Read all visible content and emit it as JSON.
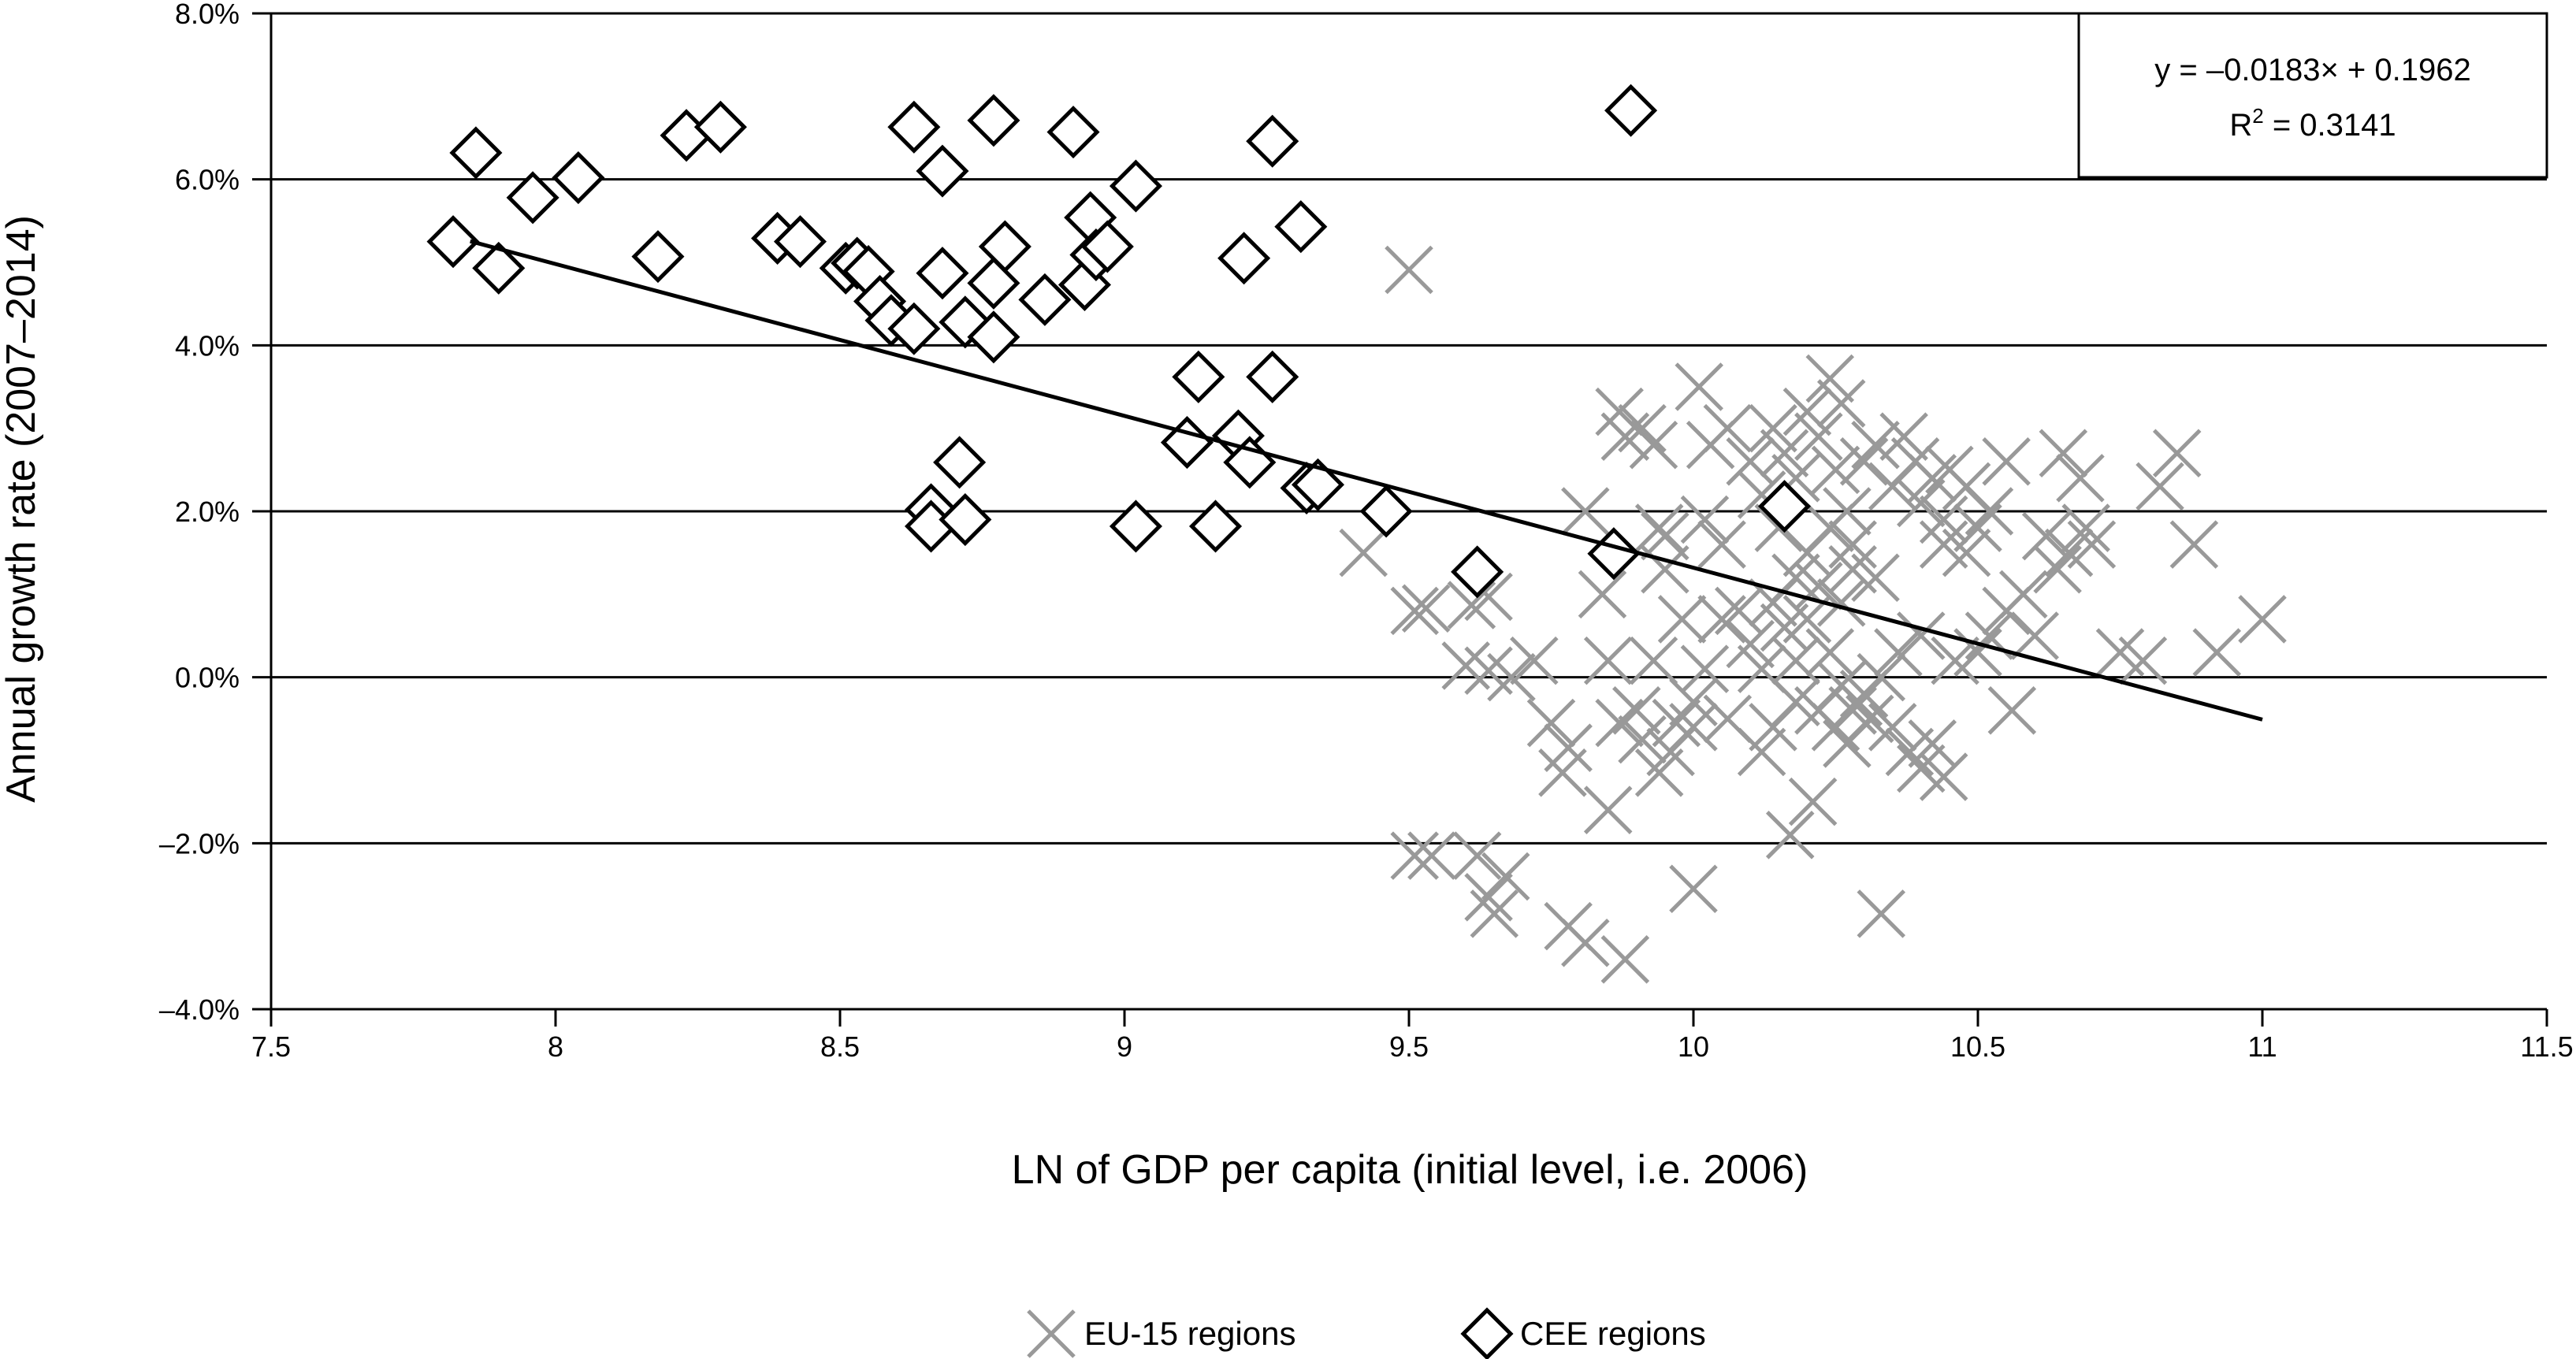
{
  "chart_data": {
    "type": "scatter",
    "title": "",
    "xlabel": "LN of GDP per capita (initial level, i.e. 2006)",
    "ylabel": "Annual growth rate (2007–2014)",
    "xlim": [
      7.5,
      11.5
    ],
    "ylim": [
      -4.0,
      8.0
    ],
    "x_ticks": [
      "7.5",
      "8",
      "8.5",
      "9",
      "9.5",
      "10",
      "10.5",
      "11",
      "11.5"
    ],
    "y_ticks": [
      "–4.0%",
      "–2.0%",
      "0.0%",
      "2.0%",
      "4.0%",
      "6.0%",
      "8.0%"
    ],
    "grid": "horizontal",
    "legend_position": "bottom",
    "colors": {
      "eu15": "#999999",
      "cee": "#000000",
      "trend": "#000000"
    },
    "trendline": {
      "equation": "y = –0.0183× + 0.1962",
      "r_squared_label": "R",
      "r_squared_sup": "2",
      "r_squared_value": " = 0.3141",
      "slope": -0.0183,
      "intercept": 0.1962,
      "x_range": [
        7.85,
        11.0
      ]
    },
    "series": [
      {
        "name": "EU-15 regions",
        "marker": "cross",
        "points": [
          [
            9.5,
            4.91
          ],
          [
            9.42,
            1.5
          ],
          [
            9.51,
            0.8
          ],
          [
            9.53,
            0.83
          ],
          [
            9.61,
            0.87
          ],
          [
            9.64,
            0.97
          ],
          [
            9.6,
            0.14
          ],
          [
            9.64,
            0.08
          ],
          [
            9.68,
            0.0
          ],
          [
            9.72,
            0.2
          ],
          [
            9.75,
            -0.55
          ],
          [
            9.78,
            -0.85
          ],
          [
            9.77,
            -1.15
          ],
          [
            9.81,
            2.0
          ],
          [
            9.84,
            1.0
          ],
          [
            9.85,
            0.2
          ],
          [
            9.87,
            3.2
          ],
          [
            9.88,
            2.9
          ],
          [
            9.91,
            3.0
          ],
          [
            9.93,
            2.8
          ],
          [
            9.94,
            1.8
          ],
          [
            9.95,
            1.3
          ],
          [
            10.01,
            3.5
          ],
          [
            10.03,
            2.8
          ],
          [
            10.06,
            3.0
          ],
          [
            9.87,
            -0.55
          ],
          [
            9.91,
            -0.75
          ],
          [
            9.94,
            -1.15
          ],
          [
            9.97,
            -0.55
          ],
          [
            9.85,
            -1.6
          ],
          [
            10.0,
            -2.55
          ],
          [
            9.51,
            -2.15
          ],
          [
            9.54,
            -2.15
          ],
          [
            9.62,
            -2.15
          ],
          [
            9.64,
            -2.65
          ],
          [
            9.65,
            -2.85
          ],
          [
            9.67,
            -2.4
          ],
          [
            9.78,
            -3.0
          ],
          [
            9.81,
            -3.2
          ],
          [
            9.88,
            -3.4
          ],
          [
            10.33,
            -2.85
          ],
          [
            10.17,
            -1.9
          ],
          [
            10.21,
            -1.5
          ],
          [
            10.1,
            2.6
          ],
          [
            10.12,
            2.2
          ],
          [
            10.14,
            3.0
          ],
          [
            10.15,
            1.8
          ],
          [
            10.16,
            2.7
          ],
          [
            10.18,
            2.4
          ],
          [
            10.2,
            3.2
          ],
          [
            10.22,
            2.9
          ],
          [
            10.24,
            3.6
          ],
          [
            10.25,
            2.5
          ],
          [
            10.26,
            3.3
          ],
          [
            10.27,
            2.0
          ],
          [
            10.28,
            1.6
          ],
          [
            10.3,
            2.6
          ],
          [
            10.32,
            2.8
          ],
          [
            10.35,
            2.3
          ],
          [
            10.37,
            2.9
          ],
          [
            10.39,
            2.6
          ],
          [
            10.4,
            2.1
          ],
          [
            10.42,
            2.4
          ],
          [
            10.44,
            1.9
          ],
          [
            10.08,
            0.8
          ],
          [
            10.1,
            0.4
          ],
          [
            10.12,
            0.1
          ],
          [
            10.14,
            0.9
          ],
          [
            10.16,
            0.6
          ],
          [
            10.18,
            0.2
          ],
          [
            10.2,
            0.7
          ],
          [
            10.22,
            1.1
          ],
          [
            10.24,
            0.3
          ],
          [
            10.26,
            -0.1
          ],
          [
            10.28,
            -0.4
          ],
          [
            10.3,
            -0.2
          ],
          [
            10.31,
            -0.5
          ],
          [
            10.33,
            0.0
          ],
          [
            10.25,
            -0.6
          ],
          [
            10.22,
            -0.4
          ],
          [
            10.18,
            -0.3
          ],
          [
            10.14,
            -0.6
          ],
          [
            10.12,
            -0.9
          ],
          [
            10.27,
            -0.8
          ],
          [
            10.29,
            -0.3
          ],
          [
            10.35,
            -0.6
          ],
          [
            10.38,
            -0.9
          ],
          [
            10.4,
            -1.1
          ],
          [
            10.42,
            -0.8
          ],
          [
            10.44,
            -1.2
          ],
          [
            10.36,
            0.3
          ],
          [
            10.4,
            0.5
          ],
          [
            10.05,
            0.7
          ],
          [
            10.02,
            0.1
          ],
          [
            10.0,
            -0.3
          ],
          [
            10.06,
            -0.5
          ],
          [
            10.2,
            1.5
          ],
          [
            10.24,
            1.8
          ],
          [
            10.28,
            1.3
          ],
          [
            10.32,
            1.2
          ],
          [
            10.18,
            1.2
          ],
          [
            10.26,
            0.9
          ],
          [
            10.45,
            2.5
          ],
          [
            10.48,
            2.3
          ],
          [
            10.5,
            1.8
          ],
          [
            10.52,
            2.0
          ],
          [
            10.55,
            2.6
          ],
          [
            10.48,
            1.5
          ],
          [
            10.5,
            0.3
          ],
          [
            10.52,
            0.5
          ],
          [
            10.55,
            0.8
          ],
          [
            10.58,
            1.0
          ],
          [
            10.46,
            0.2
          ],
          [
            10.56,
            -0.4
          ],
          [
            10.44,
            1.6
          ],
          [
            10.62,
            1.7
          ],
          [
            10.65,
            2.7
          ],
          [
            10.68,
            2.4
          ],
          [
            10.66,
            1.5
          ],
          [
            10.69,
            1.8
          ],
          [
            10.64,
            1.3
          ],
          [
            10.7,
            1.6
          ],
          [
            10.6,
            0.5
          ],
          [
            10.79,
            0.2
          ],
          [
            10.82,
            2.3
          ],
          [
            10.85,
            2.7
          ],
          [
            10.88,
            1.6
          ],
          [
            10.92,
            0.3
          ],
          [
            11.0,
            0.7
          ],
          [
            10.75,
            0.3
          ],
          [
            9.95,
            1.7
          ],
          [
            9.98,
            0.7
          ],
          [
            10.02,
            1.9
          ],
          [
            10.05,
            1.6
          ],
          [
            9.93,
            0.2
          ],
          [
            9.9,
            -0.4
          ],
          [
            9.96,
            -0.9
          ],
          [
            10.0,
            -0.6
          ]
        ]
      },
      {
        "name": "CEE regions",
        "marker": "diamond",
        "points": [
          [
            7.82,
            5.25
          ],
          [
            7.86,
            6.32
          ],
          [
            7.9,
            4.93
          ],
          [
            7.96,
            5.78
          ],
          [
            8.04,
            6.02
          ],
          [
            8.18,
            5.07
          ],
          [
            8.23,
            6.53
          ],
          [
            8.29,
            6.63
          ],
          [
            8.39,
            5.29
          ],
          [
            8.43,
            5.25
          ],
          [
            8.51,
            4.93
          ],
          [
            8.53,
            4.99
          ],
          [
            8.55,
            4.89
          ],
          [
            8.57,
            4.53
          ],
          [
            8.59,
            4.3
          ],
          [
            8.63,
            4.2
          ],
          [
            8.63,
            6.63
          ],
          [
            8.68,
            6.1
          ],
          [
            8.68,
            4.87
          ],
          [
            8.71,
            2.59
          ],
          [
            8.72,
            4.28
          ],
          [
            8.66,
            2.02
          ],
          [
            8.66,
            1.82
          ],
          [
            8.72,
            1.9
          ],
          [
            8.77,
            6.71
          ],
          [
            8.77,
            4.75
          ],
          [
            8.77,
            4.1
          ],
          [
            8.79,
            5.19
          ],
          [
            8.86,
            4.55
          ],
          [
            8.91,
            6.57
          ],
          [
            8.93,
            4.73
          ],
          [
            8.94,
            5.54
          ],
          [
            8.95,
            5.09
          ],
          [
            8.97,
            5.19
          ],
          [
            9.02,
            5.92
          ],
          [
            9.02,
            1.82
          ],
          [
            9.11,
            2.83
          ],
          [
            9.13,
            3.62
          ],
          [
            9.16,
            1.82
          ],
          [
            9.2,
            2.91
          ],
          [
            9.21,
            5.05
          ],
          [
            9.22,
            2.59
          ],
          [
            9.26,
            6.46
          ],
          [
            9.26,
            3.62
          ],
          [
            9.31,
            5.43
          ],
          [
            9.32,
            2.28
          ],
          [
            9.34,
            2.32
          ],
          [
            9.46,
            2.0
          ],
          [
            9.62,
            1.27
          ],
          [
            9.86,
            1.49
          ],
          [
            9.89,
            6.83
          ],
          [
            10.16,
            2.06
          ]
        ]
      }
    ]
  }
}
